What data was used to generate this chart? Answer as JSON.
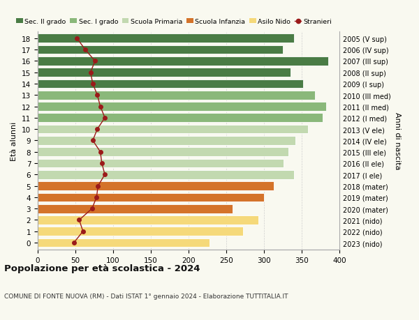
{
  "ages": [
    18,
    17,
    16,
    15,
    14,
    13,
    12,
    11,
    10,
    9,
    8,
    7,
    6,
    5,
    4,
    3,
    2,
    1,
    0
  ],
  "years": [
    "2005 (V sup)",
    "2006 (IV sup)",
    "2007 (III sup)",
    "2008 (II sup)",
    "2009 (I sup)",
    "2010 (III med)",
    "2011 (II med)",
    "2012 (I med)",
    "2013 (V ele)",
    "2014 (IV ele)",
    "2015 (III ele)",
    "2016 (II ele)",
    "2017 (I ele)",
    "2018 (mater)",
    "2019 (mater)",
    "2020 (mater)",
    "2021 (nido)",
    "2022 (nido)",
    "2023 (nido)"
  ],
  "bar_values": [
    340,
    325,
    385,
    335,
    352,
    368,
    382,
    378,
    358,
    342,
    332,
    326,
    340,
    313,
    300,
    258,
    293,
    272,
    228
  ],
  "bar_colors": [
    "#4a7c45",
    "#4a7c45",
    "#4a7c45",
    "#4a7c45",
    "#4a7c45",
    "#8ab87a",
    "#8ab87a",
    "#8ab87a",
    "#c2d9b0",
    "#c2d9b0",
    "#c2d9b0",
    "#c2d9b0",
    "#c2d9b0",
    "#d4732a",
    "#d4732a",
    "#d4732a",
    "#f5d97a",
    "#f5d97a",
    "#f5d97a"
  ],
  "stranieri_values": [
    52,
    63,
    76,
    70,
    73,
    79,
    83,
    89,
    79,
    73,
    83,
    85,
    89,
    80,
    78,
    72,
    55,
    60,
    48
  ],
  "legend_labels": [
    "Sec. II grado",
    "Sec. I grado",
    "Scuola Primaria",
    "Scuola Infanzia",
    "Asilo Nido",
    "Stranieri"
  ],
  "legend_colors": [
    "#4a7c45",
    "#8ab87a",
    "#c2d9b0",
    "#d4732a",
    "#f5d97a",
    "#b22222"
  ],
  "ylabel_left": "Età alunni",
  "ylabel_right": "Anni di nascita",
  "xlim": [
    0,
    400
  ],
  "xticks": [
    0,
    50,
    100,
    150,
    200,
    250,
    300,
    350,
    400
  ],
  "title": "Popolazione per età scolastica - 2024",
  "subtitle": "COMUNE DI FONTE NUOVA (RM) - Dati ISTAT 1° gennaio 2024 - Elaborazione TUTTITALIA.IT",
  "bg_color": "#f9f9f0",
  "bar_height": 0.78
}
